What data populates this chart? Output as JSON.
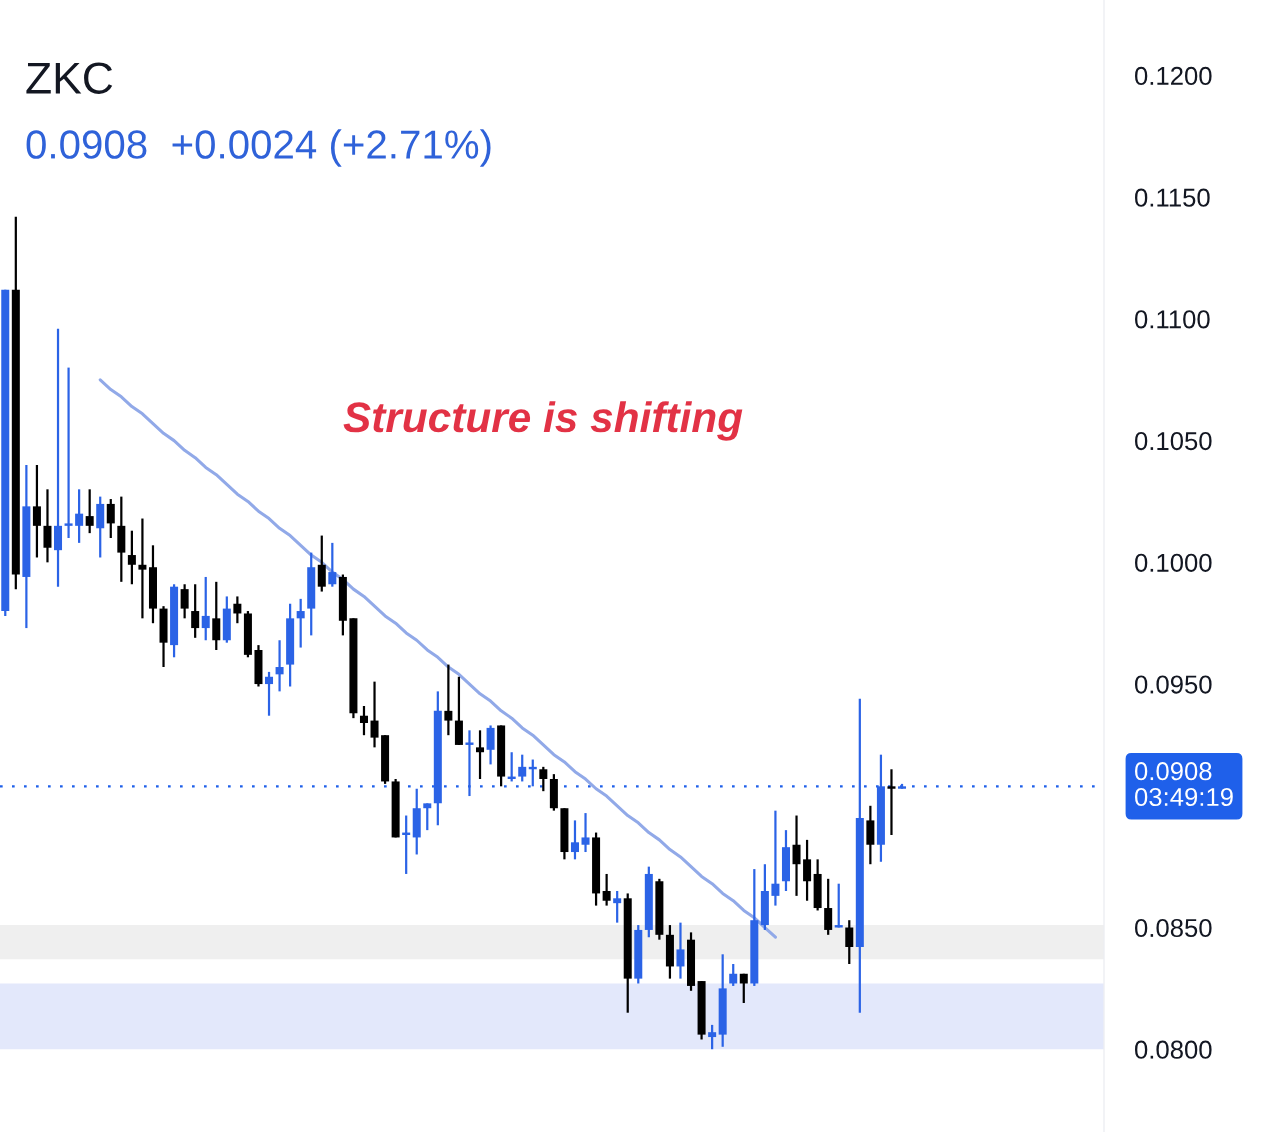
{
  "chart_data": {
    "type": "candlestick",
    "title": "ZKC",
    "subtitle": "0.0908  +0.0024 (+2.71%)",
    "categories": [
      null,
      null,
      null,
      null,
      null,
      null,
      null,
      null,
      null,
      null,
      null,
      null,
      null,
      null,
      null,
      null,
      null,
      null,
      null,
      null,
      null,
      null,
      null,
      null,
      null,
      null,
      null,
      null,
      null,
      null,
      null,
      null,
      null,
      null,
      null,
      null,
      null,
      null,
      null,
      null,
      null,
      null,
      null,
      null,
      null,
      null,
      null,
      null,
      null,
      null,
      null,
      null,
      null,
      null,
      null,
      null,
      null,
      null,
      null,
      null,
      null,
      null,
      null,
      null,
      null,
      null,
      null,
      null,
      null,
      null,
      null,
      null,
      null,
      null,
      null,
      null,
      null,
      null,
      null,
      null,
      null,
      null,
      null,
      null,
      null,
      null
    ],
    "ohlc": [
      [
        0.098,
        0.1112,
        0.0978,
        0.1112
      ],
      [
        0.1112,
        0.1142,
        0.0989,
        0.0995
      ],
      [
        0.0994,
        0.104,
        0.0973,
        0.1023
      ],
      [
        0.1023,
        0.104,
        0.1002,
        0.1015
      ],
      [
        0.1015,
        0.103,
        0.1,
        0.1006
      ],
      [
        0.1005,
        0.1096,
        0.099,
        0.1015
      ],
      [
        0.1015,
        0.108,
        0.101,
        0.1016
      ],
      [
        0.1015,
        0.103,
        0.1008,
        0.102
      ],
      [
        0.1019,
        0.103,
        0.1012,
        0.1015
      ],
      [
        0.1014,
        0.1027,
        0.1002,
        0.1024
      ],
      [
        0.1024,
        0.1026,
        0.101,
        0.1016
      ],
      [
        0.1015,
        0.1027,
        0.0992,
        0.1004
      ],
      [
        0.1003,
        0.1013,
        0.0991,
        0.0999
      ],
      [
        0.0999,
        0.1018,
        0.0977,
        0.0997
      ],
      [
        0.0998,
        0.1007,
        0.0975,
        0.0981
      ],
      [
        0.0981,
        0.0982,
        0.0957,
        0.0967
      ],
      [
        0.0966,
        0.0991,
        0.0961,
        0.099
      ],
      [
        0.0989,
        0.0991,
        0.0977,
        0.0981
      ],
      [
        0.098,
        0.0991,
        0.0969,
        0.0973
      ],
      [
        0.0973,
        0.0994,
        0.0968,
        0.0978
      ],
      [
        0.0977,
        0.0992,
        0.0964,
        0.0968
      ],
      [
        0.0968,
        0.0986,
        0.0967,
        0.0981
      ],
      [
        0.0983,
        0.0986,
        0.0975,
        0.0979
      ],
      [
        0.0979,
        0.098,
        0.0961,
        0.0962
      ],
      [
        0.0964,
        0.0966,
        0.0949,
        0.095
      ],
      [
        0.095,
        0.0955,
        0.0937,
        0.0953
      ],
      [
        0.0954,
        0.0968,
        0.0947,
        0.0957
      ],
      [
        0.0958,
        0.0983,
        0.0949,
        0.0977
      ],
      [
        0.0977,
        0.0985,
        0.0965,
        0.098
      ],
      [
        0.0981,
        0.1004,
        0.097,
        0.0998
      ],
      [
        0.0999,
        0.1011,
        0.0988,
        0.099
      ],
      [
        0.0991,
        0.1008,
        0.099,
        0.0996
      ],
      [
        0.0994,
        0.0995,
        0.097,
        0.0976
      ],
      [
        0.0977,
        0.0977,
        0.0936,
        0.0938
      ],
      [
        0.0937,
        0.0941,
        0.0929,
        0.0934
      ],
      [
        0.0935,
        0.0951,
        0.0924,
        0.0928
      ],
      [
        0.0929,
        0.0929,
        0.0909,
        0.091
      ],
      [
        0.091,
        0.0911,
        0.0887,
        0.0887
      ],
      [
        0.0888,
        0.0896,
        0.0872,
        0.0889
      ],
      [
        0.0887,
        0.0907,
        0.088,
        0.0899
      ],
      [
        0.0899,
        0.0901,
        0.089,
        0.0901
      ],
      [
        0.0901,
        0.0947,
        0.0892,
        0.0939
      ],
      [
        0.0939,
        0.0958,
        0.0929,
        0.0935
      ],
      [
        0.0935,
        0.0953,
        0.0925,
        0.0925
      ],
      [
        0.0925,
        0.0931,
        0.0904,
        0.0926
      ],
      [
        0.0924,
        0.0931,
        0.0911,
        0.0922
      ],
      [
        0.0923,
        0.0933,
        0.0917,
        0.0932
      ],
      [
        0.0933,
        0.0933,
        0.0908,
        0.0912
      ],
      [
        0.0911,
        0.0922,
        0.091,
        0.0912
      ],
      [
        0.0912,
        0.0921,
        0.091,
        0.0916
      ],
      [
        0.0915,
        0.0919,
        0.0908,
        0.0916
      ],
      [
        0.0915,
        0.0916,
        0.0906,
        0.0911
      ],
      [
        0.0911,
        0.0913,
        0.0898,
        0.0899
      ],
      [
        0.0899,
        0.0899,
        0.0878,
        0.0881
      ],
      [
        0.0881,
        0.0894,
        0.0878,
        0.0885
      ],
      [
        0.0884,
        0.0897,
        0.0881,
        0.0887
      ],
      [
        0.0887,
        0.0889,
        0.0859,
        0.0864
      ],
      [
        0.0865,
        0.0872,
        0.0859,
        0.0861
      ],
      [
        0.086,
        0.0865,
        0.0852,
        0.0862
      ],
      [
        0.0862,
        0.0864,
        0.0815,
        0.0829
      ],
      [
        0.0829,
        0.0851,
        0.0827,
        0.0849
      ],
      [
        0.0849,
        0.0875,
        0.0846,
        0.0872
      ],
      [
        0.0869,
        0.087,
        0.0845,
        0.0847
      ],
      [
        0.0847,
        0.0851,
        0.0829,
        0.0834
      ],
      [
        0.0834,
        0.0852,
        0.0829,
        0.0841
      ],
      [
        0.0845,
        0.0848,
        0.0824,
        0.0826
      ],
      [
        0.0828,
        0.0828,
        0.0804,
        0.0806
      ],
      [
        0.0805,
        0.081,
        0.08,
        0.0807
      ],
      [
        0.0806,
        0.0839,
        0.0801,
        0.0825
      ],
      [
        0.0827,
        0.0835,
        0.0826,
        0.0831
      ],
      [
        0.0831,
        0.0831,
        0.0819,
        0.0827
      ],
      [
        0.0827,
        0.0874,
        0.0826,
        0.0853
      ],
      [
        0.0851,
        0.0876,
        0.0849,
        0.0865
      ],
      [
        0.0863,
        0.0898,
        0.0859,
        0.0868
      ],
      [
        0.0869,
        0.089,
        0.0865,
        0.0883
      ],
      [
        0.0884,
        0.0896,
        0.0863,
        0.0876
      ],
      [
        0.0878,
        0.0886,
        0.0861,
        0.0869
      ],
      [
        0.0872,
        0.0878,
        0.0857,
        0.0858
      ],
      [
        0.0858,
        0.087,
        0.0847,
        0.0849
      ],
      [
        0.085,
        0.0868,
        0.085,
        0.0851
      ],
      [
        0.085,
        0.0853,
        0.0835,
        0.0842
      ],
      [
        0.0842,
        0.0944,
        0.0815,
        0.0895
      ],
      [
        0.0894,
        0.09,
        0.0876,
        0.0884
      ],
      [
        0.0884,
        0.0921,
        0.0877,
        0.0908
      ],
      [
        0.0908,
        0.0915,
        0.0888,
        0.0907
      ],
      [
        0.0907,
        0.0909,
        0.0907,
        0.0908
      ]
    ],
    "colors": [
      "#2b63e6",
      "#000000",
      "#2b63e6",
      "#000000",
      "#000000",
      "#2b63e6",
      "#2b63e6",
      "#2b63e6",
      "#000000",
      "#2b63e6",
      "#000000",
      "#000000",
      "#000000",
      "#000000",
      "#000000",
      "#000000",
      "#2b63e6",
      "#000000",
      "#000000",
      "#2b63e6",
      "#000000",
      "#2b63e6",
      "#000000",
      "#000000",
      "#000000",
      "#2b63e6",
      "#2b63e6",
      "#2b63e6",
      "#2b63e6",
      "#2b63e6",
      "#000000",
      "#2b63e6",
      "#000000",
      "#000000",
      "#000000",
      "#000000",
      "#000000",
      "#000000",
      "#2b63e6",
      "#2b63e6",
      "#2b63e6",
      "#2b63e6",
      "#000000",
      "#000000",
      "#2b63e6",
      "#000000",
      "#2b63e6",
      "#000000",
      "#2b63e6",
      "#2b63e6",
      "#2b63e6",
      "#000000",
      "#000000",
      "#000000",
      "#2b63e6",
      "#2b63e6",
      "#000000",
      "#000000",
      "#2b63e6",
      "#000000",
      "#2b63e6",
      "#2b63e6",
      "#000000",
      "#000000",
      "#2b63e6",
      "#000000",
      "#000000",
      "#2b63e6",
      "#2b63e6",
      "#2b63e6",
      "#000000",
      "#2b63e6",
      "#2b63e6",
      "#2b63e6",
      "#2b63e6",
      "#000000",
      "#000000",
      "#000000",
      "#000000",
      "#2b63e6",
      "#000000",
      "#2b63e6",
      "#000000",
      "#2b63e6",
      "#000000",
      "#2b63e6"
    ],
    "series": [
      {
        "type": "line",
        "values": [
          null,
          null,
          null,
          null,
          null,
          null,
          null,
          null,
          null,
          0.1075,
          0.1071,
          0.1068,
          0.1064,
          0.1061,
          0.1057,
          0.1053,
          0.105,
          0.1046,
          0.1043,
          0.1039,
          0.1036,
          0.1032,
          0.1028,
          0.1025,
          0.1021,
          0.1018,
          0.1014,
          0.1011,
          0.1007,
          0.1003,
          0.1,
          0.0996,
          0.0993,
          0.0989,
          0.0986,
          0.0982,
          0.0978,
          0.0975,
          0.0971,
          0.0968,
          0.0964,
          0.0961,
          0.0957,
          0.0954,
          0.095,
          0.0946,
          0.0943,
          0.0939,
          0.0936,
          0.0932,
          0.0929,
          0.0925,
          0.0921,
          0.0918,
          0.0914,
          0.0911,
          0.0907,
          0.0904,
          0.09,
          0.0896,
          0.0893,
          0.0889,
          0.0886,
          0.0882,
          0.0879,
          0.0875,
          0.0871,
          0.0868,
          0.0864,
          0.0861,
          0.0857,
          0.0854,
          0.085,
          0.0846,
          null,
          null,
          null,
          null,
          null,
          null,
          null,
          null,
          null,
          null,
          null,
          null
        ],
        "color": "#91a9e8"
      }
    ],
    "ylim": [
      0.0766,
      0.1231
    ],
    "yticks": [
      {
        "value": 0.08,
        "label": "0.0800"
      },
      {
        "value": 0.085,
        "label": "0.0850"
      },
      {
        "value": 0.095,
        "label": "0.0950"
      },
      {
        "value": 0.1,
        "label": "0.1000"
      },
      {
        "value": 0.105,
        "label": "0.1050"
      },
      {
        "value": 0.11,
        "label": "0.1100"
      },
      {
        "value": 0.115,
        "label": "0.1150"
      },
      {
        "value": 0.12,
        "label": "0.1200"
      }
    ],
    "tick_labels": "y",
    "ref_lines": [
      {
        "axis": "y",
        "value": 0.0908,
        "label": "0.0908\n03:49:19",
        "color": "#1f60ea",
        "line_style": "dotted"
      }
    ],
    "bands": [
      {
        "axis": "y",
        "from": 0.08,
        "to": 0.0827,
        "color": "#e3e8fb"
      },
      {
        "axis": "y",
        "from": 0.0837,
        "to": 0.0851,
        "color": "#efefef"
      }
    ],
    "annotations": [
      "Structure is shifting"
    ]
  }
}
